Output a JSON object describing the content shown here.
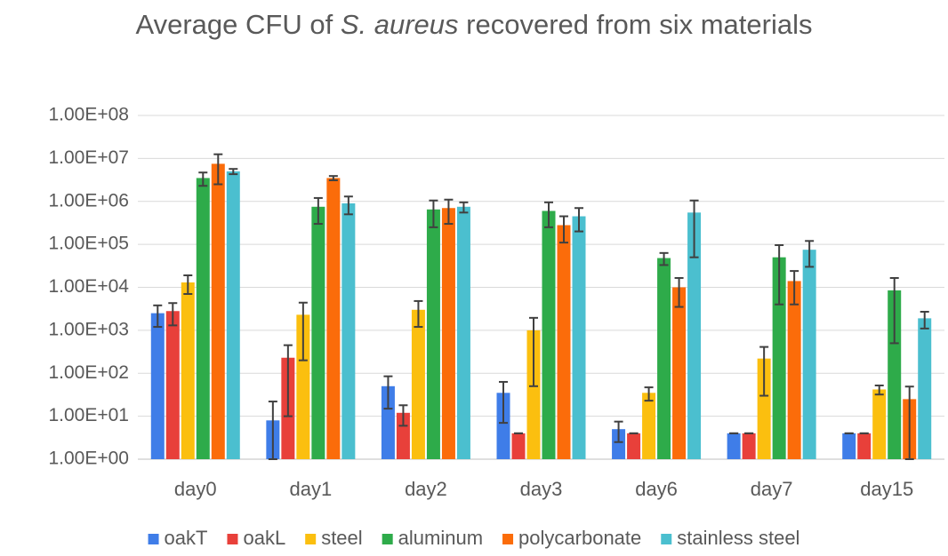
{
  "chart_data": {
    "type": "bar",
    "title": {
      "before": "Average CFU of",
      "italic": "S. aureus",
      "after": "recovered from six materials"
    },
    "categories": [
      "day0",
      "day1",
      "day2",
      "day3",
      "day6",
      "day7",
      "day15"
    ],
    "log_scale": true,
    "grid": true,
    "legend": "bottom",
    "ylim": [
      1,
      100000000
    ],
    "yticks": [
      {
        "value": 1,
        "label": "1.00E+00"
      },
      {
        "value": 10,
        "label": "1.00E+01"
      },
      {
        "value": 100,
        "label": "1.00E+02"
      },
      {
        "value": 1000,
        "label": "1.00E+03"
      },
      {
        "value": 10000,
        "label": "1.00E+04"
      },
      {
        "value": 100000,
        "label": "1.00E+05"
      },
      {
        "value": 1000000,
        "label": "1.00E+06"
      },
      {
        "value": 10000000,
        "label": "1.00E+07"
      },
      {
        "value": 100000000,
        "label": "1.00E+08"
      }
    ],
    "series": [
      {
        "name": "oakT",
        "color": "#3f7de8",
        "values": [
          2500,
          8,
          50,
          35,
          5,
          4,
          4
        ],
        "errors": [
          1300,
          14,
          35,
          28,
          2.5,
          0,
          0
        ]
      },
      {
        "name": "oakL",
        "color": "#e8403a",
        "values": [
          2800,
          230,
          12,
          4,
          4,
          4,
          4
        ],
        "errors": [
          1500,
          220,
          6,
          0,
          0,
          0,
          0
        ]
      },
      {
        "name": "steel",
        "color": "#fbbf0f",
        "values": [
          13000,
          2300,
          3000,
          1000,
          35,
          220,
          42
        ],
        "errors": [
          6000,
          2100,
          1800,
          950,
          12,
          190,
          10
        ]
      },
      {
        "name": "aluminum",
        "color": "#2eab4a",
        "values": [
          3500000,
          750000,
          650000,
          600000,
          48000,
          50000,
          8500
        ],
        "errors": [
          1200000,
          450000,
          400000,
          350000,
          15000,
          46000,
          8000
        ]
      },
      {
        "name": "polycarbonate",
        "color": "#fb6c0a",
        "values": [
          7500000,
          3500000,
          700000,
          280000,
          10000,
          14000,
          25
        ],
        "errors": [
          5000000,
          400000,
          400000,
          170000,
          6500,
          10000,
          24
        ]
      },
      {
        "name": "stainless steel",
        "color": "#4bbfcf",
        "values": [
          5000000,
          900000,
          750000,
          450000,
          550000,
          75000,
          1900
        ],
        "errors": [
          700000,
          400000,
          200000,
          250000,
          500000,
          45000,
          800
        ]
      }
    ]
  }
}
